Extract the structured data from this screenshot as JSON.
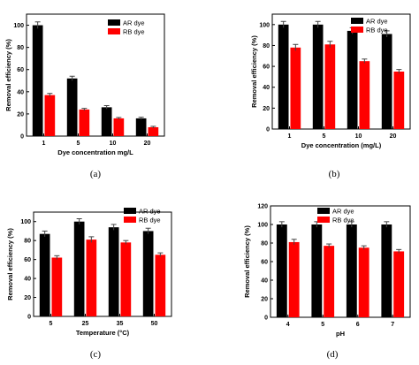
{
  "colors": {
    "ar": "#000000",
    "rb": "#ff0000",
    "axis": "#000000"
  },
  "chart_data": [
    {
      "type": "bar",
      "caption": "(a)",
      "categories": [
        "1",
        "5",
        "10",
        "20"
      ],
      "xlabel": "Dye concentration mg/L",
      "ylabel": "Removal efficiency (%)",
      "ylim": [
        0,
        110
      ],
      "yticks": [
        0,
        20,
        40,
        60,
        80,
        100
      ],
      "legend_position": "top-right",
      "series": [
        {
          "name": "AR dye",
          "values": [
            100,
            52,
            26,
            16
          ],
          "errors": [
            3,
            2,
            1.5,
            1
          ]
        },
        {
          "name": "RB dye",
          "values": [
            37,
            24,
            16,
            8
          ],
          "errors": [
            1.5,
            1,
            0.8,
            0.8
          ]
        }
      ]
    },
    {
      "type": "bar",
      "caption": "(b)",
      "categories": [
        "1",
        "5",
        "10",
        "20"
      ],
      "xlabel": "Dye concentration (mg/L)",
      "ylabel": "Removal efficiency (%)",
      "ylim": [
        0,
        110
      ],
      "yticks": [
        0,
        20,
        40,
        60,
        80,
        100
      ],
      "legend_position": "top-right",
      "series": [
        {
          "name": "AR dye",
          "values": [
            100,
            100,
            94,
            91
          ],
          "errors": [
            3,
            3,
            3,
            3
          ]
        },
        {
          "name": "RB dye",
          "values": [
            78,
            81,
            65,
            55
          ],
          "errors": [
            3,
            3,
            2,
            2
          ]
        }
      ]
    },
    {
      "type": "bar",
      "caption": "(c)",
      "categories": [
        "5",
        "25",
        "35",
        "50"
      ],
      "xlabel": "Temperature (°C)",
      "ylabel": "Removal efficiency (%)",
      "ylim": [
        0,
        110
      ],
      "yticks": [
        0,
        20,
        40,
        60,
        80,
        100
      ],
      "legend_position": "top-right",
      "series": [
        {
          "name": "AR dye",
          "values": [
            87,
            100,
            94,
            90
          ],
          "errors": [
            3,
            3,
            3,
            3
          ]
        },
        {
          "name": "RB dye",
          "values": [
            62,
            81,
            78,
            65
          ],
          "errors": [
            2,
            3,
            2,
            2
          ]
        }
      ]
    },
    {
      "type": "bar",
      "caption": "(d)",
      "categories": [
        "4",
        "5",
        "6",
        "7"
      ],
      "xlabel": "pH",
      "ylabel": "Removal efficiency (%)",
      "ylim": [
        0,
        120
      ],
      "yticks": [
        0,
        20,
        40,
        60,
        80,
        100,
        120
      ],
      "legend_position": "top-right",
      "series": [
        {
          "name": "AR dye",
          "values": [
            100,
            100,
            100,
            100
          ],
          "errors": [
            3,
            3,
            3,
            3
          ]
        },
        {
          "name": "RB dye",
          "values": [
            81,
            77,
            75,
            71
          ],
          "errors": [
            3,
            2,
            2,
            2
          ]
        }
      ]
    }
  ]
}
